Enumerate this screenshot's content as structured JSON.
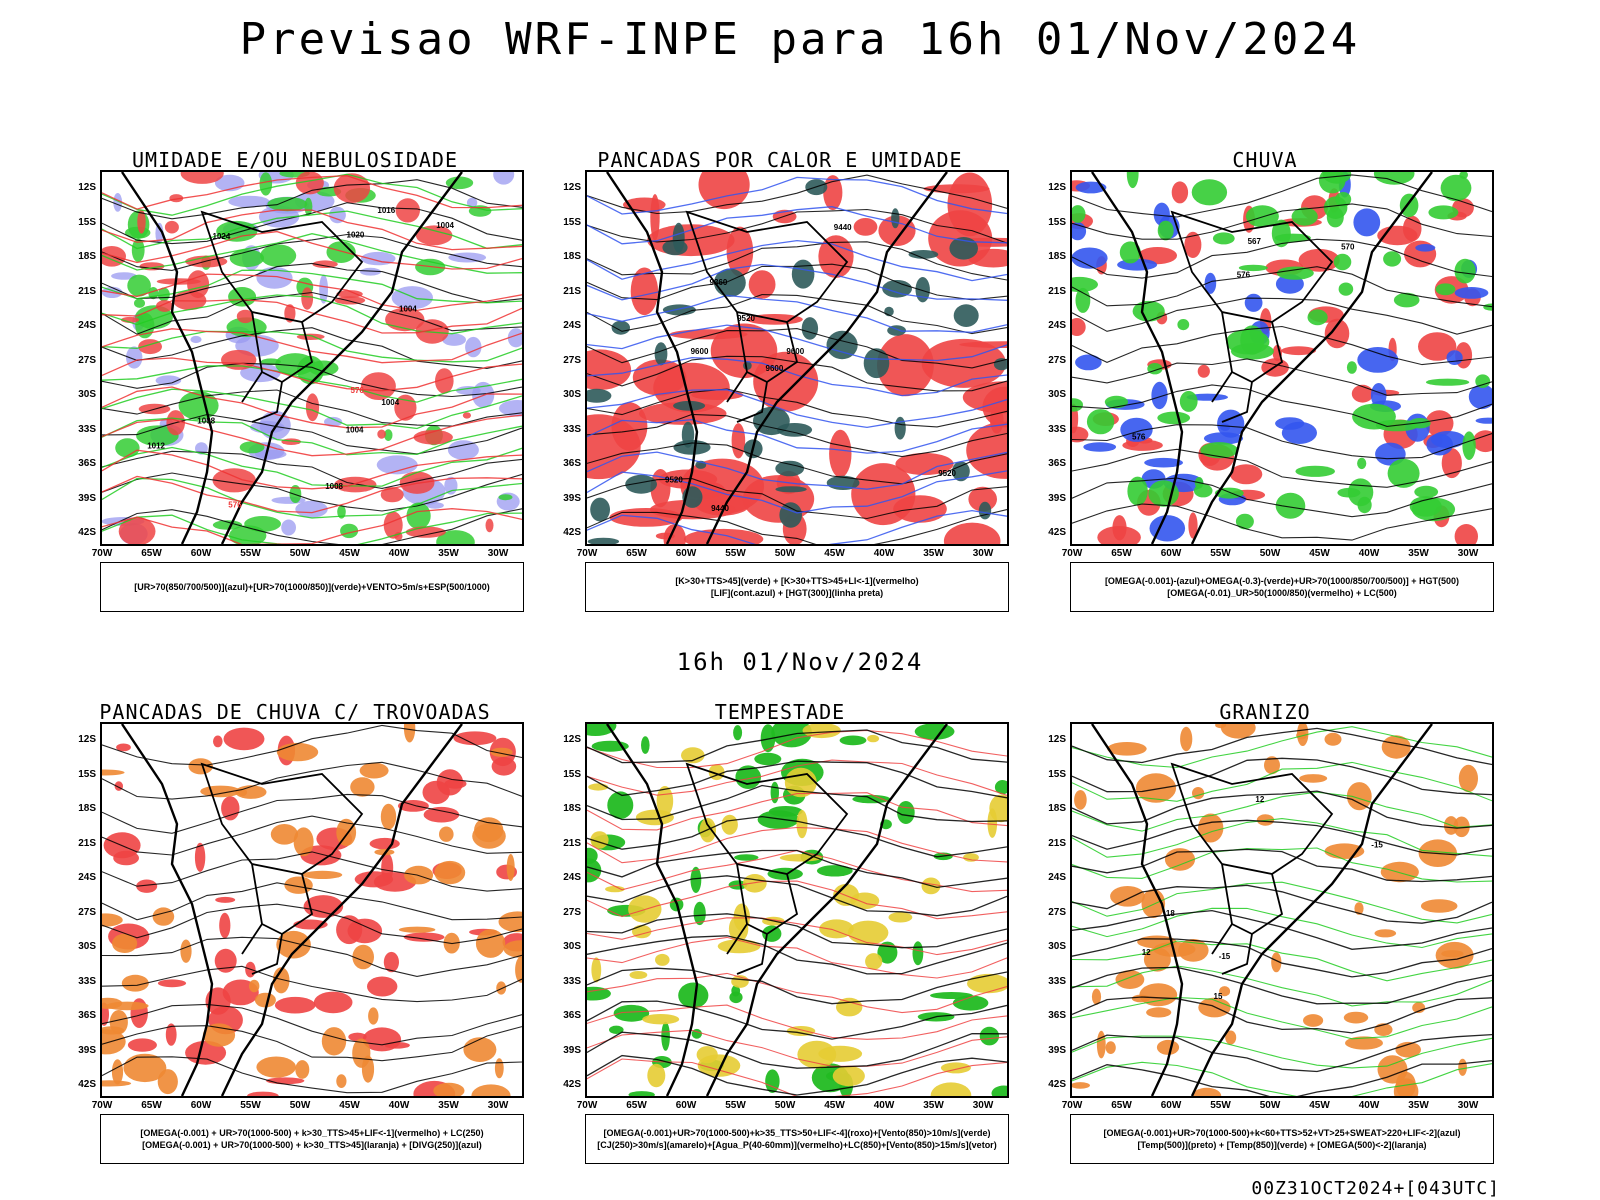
{
  "title": "Previsao WRF-INPE  para 16h 01/Nov/2024",
  "subtitle": "16h 01/Nov/2024",
  "footer": "00Z31OCT2024+[043UTC]",
  "lat_labels": [
    "12S",
    "15S",
    "18S",
    "21S",
    "24S",
    "27S",
    "30S",
    "33S",
    "36S",
    "39S",
    "42S"
  ],
  "lon_labels": [
    "70W",
    "65W",
    "60W",
    "55W",
    "50W",
    "45W",
    "40W",
    "35W",
    "30W"
  ],
  "panels": [
    {
      "title": "UMIDADE E/OU NEBULOSIDADE",
      "legend": [
        "[UR>70(850/700/500)](azul)+[UR>70(1000/850)](verde)+VENTO>5m/s+ESP(500/1000)"
      ],
      "contour_labels": [
        "1004",
        "1004",
        "1004",
        "1008",
        "1012",
        "1016",
        "1020",
        "1024",
        "576",
        "576",
        "1004",
        "1008"
      ]
    },
    {
      "title": "PANCADAS POR CALOR E UMIDADE",
      "legend": [
        "[K>30+TTS>45](verde) + [K>30+TTS>45+LI<-1](vermelho)",
        "[LIF](cont.azul) + [HGT(300)](linha preta)"
      ],
      "contour_labels": [
        "9600",
        "9600",
        "9520",
        "9440",
        "9520",
        "9440",
        "9520",
        "9360",
        "9600"
      ]
    },
    {
      "title": "CHUVA",
      "legend": [
        "[OMEGA(-0.001)-(azul)+OMEGA(-0.3)-(verde)+UR>70(1000/850/700/500)] + HGT(500)",
        "[OMEGA(-0.01)_UR>50(1000/850)(vermelho) + LC(500)"
      ],
      "contour_labels": [
        "576",
        "576",
        "570",
        "567"
      ]
    },
    {
      "title": "PANCADAS DE CHUVA C/ TROVOADAS",
      "legend": [
        "[OMEGA(-0.001) + UR>70(1000-500) + k>30_TTS>45+LIF<-1](vermelho) + LC(250)",
        "[OMEGA(-0.001) + UR>70(1000-500) + k>30_TTS>45](laranja) + [DIVG(250)](azul)"
      ],
      "contour_labels": []
    },
    {
      "title": "TEMPESTADE",
      "legend": [
        "[OMEGA(-0.001)+UR>70(1000-500)+k>35_TTS>50+LIF<-4](roxo)+[Vento(850)>10m/s](verde)",
        "[CJ(250)>30m/s](amarelo)+[Agua_P(40-60mm)](vermelho)+LC(850)+[Vento(850)>15m/s](vetor)"
      ],
      "contour_labels": []
    },
    {
      "title": "GRANIZO",
      "legend": [
        "[OMEGA(-0.001)+UR>70(1000-500)+k<60+TTS>52+VT>25+SWEAT>220+LIF<-2](azul)",
        "[Temp(500)](preto) + [Temp(850)](verde) + [OMEGA(500)<-2](laranja)"
      ],
      "contour_labels": [
        "-15",
        "-15",
        "12",
        "12",
        "18",
        "15"
      ]
    }
  ]
}
